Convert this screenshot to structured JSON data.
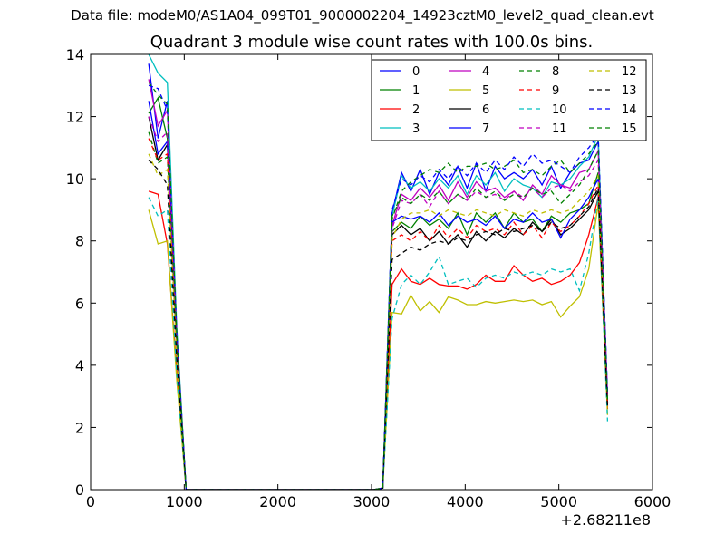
{
  "chart_data": {
    "type": "line",
    "suptitle": "Data file: modeM0/AS1A04_099T01_9000002204_14923cztM0_level2_quad_clean.evt",
    "title": "Quadrant 3 module wise count rates with 100.0s bins.",
    "xlabel": "",
    "ylabel": "",
    "x_offset_label": "+2.68211e8",
    "xlim": [
      0,
      6000
    ],
    "ylim": [
      0,
      14
    ],
    "xticks": [
      "0",
      "1000",
      "2000",
      "3000",
      "4000",
      "5000",
      "6000"
    ],
    "yticks": [
      "0",
      "2",
      "4",
      "6",
      "8",
      "10",
      "12",
      "14"
    ],
    "grid": false,
    "legend_position": "top-right",
    "x": [
      620,
      720,
      820,
      920,
      1020,
      1120,
      1220,
      1320,
      1420,
      1520,
      1620,
      1720,
      1820,
      1920,
      2020,
      2120,
      2220,
      2320,
      2420,
      2520,
      2620,
      2720,
      2820,
      2920,
      3020,
      3120,
      3220,
      3320,
      3420,
      3520,
      3620,
      3720,
      3820,
      3920,
      4020,
      4120,
      4220,
      4320,
      4420,
      4520,
      4620,
      4720,
      4820,
      4920,
      5020,
      5120,
      5220,
      5320,
      5420,
      5520
    ],
    "series": [
      {
        "name": "0",
        "color": "#0000ff",
        "dash": "",
        "values": [
          13.7,
          11.3,
          12.5,
          5,
          0,
          0,
          0,
          0,
          0,
          0,
          0,
          0,
          0,
          0,
          0,
          0,
          0,
          0,
          0,
          0,
          0,
          0,
          0,
          0,
          0,
          0.05,
          8.9,
          10.2,
          9.6,
          10.3,
          9.5,
          10.2,
          9.8,
          10.4,
          9.7,
          10.5,
          9.6,
          10.4,
          10,
          10.2,
          10,
          10.3,
          9.8,
          10.4,
          9.7,
          10.2,
          10.5,
          10.6,
          11.2,
          3
        ]
      },
      {
        "name": "1",
        "color": "#008000",
        "dash": "",
        "values": [
          12.1,
          12.6,
          11.3,
          4.8,
          0,
          0,
          0,
          0,
          0,
          0,
          0,
          0,
          0,
          0,
          0,
          0,
          0,
          0,
          0,
          0,
          0,
          0,
          0,
          0,
          0,
          0.05,
          8.3,
          8.6,
          8.4,
          8.8,
          8.5,
          8.7,
          8.4,
          8.9,
          8.2,
          8.9,
          8.6,
          8.9,
          8.4,
          8.9,
          8.6,
          8.7,
          8.3,
          8.8,
          8.6,
          8.9,
          9,
          9.2,
          10.2,
          2.8
        ]
      },
      {
        "name": "2",
        "color": "#ff0000",
        "dash": "",
        "values": [
          9.6,
          9.5,
          7.9,
          3.8,
          0,
          0,
          0,
          0,
          0,
          0,
          0,
          0,
          0,
          0,
          0,
          0,
          0,
          0,
          0,
          0,
          0,
          0,
          0,
          0,
          0,
          0.05,
          6.6,
          7.1,
          6.7,
          6.6,
          6.8,
          6.6,
          6.55,
          6.55,
          6.45,
          6.6,
          6.9,
          6.7,
          6.7,
          7.2,
          6.9,
          6.7,
          6.8,
          6.6,
          6.7,
          6.9,
          7.3,
          8.2,
          9.4,
          2.6
        ]
      },
      {
        "name": "3",
        "color": "#00bfbf",
        "dash": "",
        "values": [
          14,
          13.4,
          13.1,
          5.2,
          0,
          0,
          0,
          0,
          0,
          0,
          0,
          0,
          0,
          0,
          0,
          0,
          0,
          0,
          0,
          0,
          0,
          0,
          0,
          0,
          0,
          0.05,
          8.8,
          10.1,
          9.7,
          9.9,
          9.6,
          10,
          9.7,
          10.1,
          9.5,
          10.1,
          9.8,
          10.2,
          9.6,
          10,
          9.8,
          9.7,
          9.4,
          9.9,
          9.8,
          10,
          10.4,
          10.7,
          11.4,
          2.8
        ]
      },
      {
        "name": "4",
        "color": "#bf00bf",
        "dash": "",
        "values": [
          13.2,
          11.7,
          12.2,
          5,
          0,
          0,
          0,
          0,
          0,
          0,
          0,
          0,
          0,
          0,
          0,
          0,
          0,
          0,
          0,
          0,
          0,
          0,
          0,
          0,
          0,
          0.05,
          8.5,
          9.5,
          9.3,
          9.7,
          9.4,
          9.8,
          9.3,
          9.9,
          9.4,
          9.9,
          9.6,
          9.7,
          9.4,
          9.6,
          9.3,
          9.8,
          9.5,
          10.1,
          9.8,
          9.7,
          10.2,
          10.3,
          10.9,
          3
        ]
      },
      {
        "name": "5",
        "color": "#bfbf00",
        "dash": "",
        "values": [
          9,
          7.9,
          8,
          3.5,
          0,
          0,
          0,
          0,
          0,
          0,
          0,
          0,
          0,
          0,
          0,
          0,
          0,
          0,
          0,
          0,
          0,
          0,
          0,
          0,
          0,
          0.05,
          5.7,
          5.65,
          6.25,
          5.75,
          6.05,
          5.7,
          6.2,
          6.1,
          5.95,
          5.95,
          6.05,
          6,
          6.05,
          6.1,
          6.05,
          6.1,
          5.95,
          6.05,
          5.55,
          5.9,
          6.2,
          7.1,
          9.2,
          2.4
        ]
      },
      {
        "name": "6",
        "color": "#000000",
        "dash": "",
        "values": [
          12,
          10.6,
          11.1,
          4.6,
          0,
          0,
          0,
          0,
          0,
          0,
          0,
          0,
          0,
          0,
          0,
          0,
          0,
          0,
          0,
          0,
          0,
          0,
          0,
          0,
          0,
          0.05,
          8.2,
          8.5,
          8.2,
          8.4,
          8,
          8.3,
          7.9,
          8.2,
          7.8,
          8.3,
          8,
          8.3,
          8.1,
          8.4,
          8.2,
          8.6,
          8.3,
          8.7,
          8.2,
          8.4,
          8.7,
          9,
          9.6,
          2.7
        ]
      },
      {
        "name": "7",
        "color": "#0000ff",
        "dash": "",
        "values": [
          12.5,
          10.8,
          11.2,
          4.8,
          0,
          0,
          0,
          0,
          0,
          0,
          0,
          0,
          0,
          0,
          0,
          0,
          0,
          0,
          0,
          0,
          0,
          0,
          0,
          0,
          0,
          0.05,
          8.6,
          8.8,
          8.7,
          8.8,
          8.6,
          8.9,
          8.5,
          8.8,
          8.6,
          8.7,
          8.5,
          8.8,
          8.4,
          8.7,
          8.6,
          8.9,
          8.6,
          8.7,
          8.1,
          8.7,
          9,
          9.4,
          10,
          2.9
        ]
      },
      {
        "name": "8",
        "color": "#008000",
        "dash": "5,4",
        "values": [
          11.5,
          10.5,
          10.7,
          4.5,
          0,
          0,
          0,
          0,
          0,
          0,
          0,
          0,
          0,
          0,
          0,
          0,
          0,
          0,
          0,
          0,
          0,
          0,
          0,
          0,
          0,
          0.05,
          8.7,
          9.6,
          9.9,
          10.1,
          10.3,
          10.2,
          10.5,
          10.2,
          10.4,
          10.4,
          10.5,
          10.3,
          10.4,
          10.6,
          10.2,
          10.3,
          10.1,
          10.4,
          10.6,
          10.2,
          10.5,
          10.8,
          11.2,
          2.9
        ]
      },
      {
        "name": "9",
        "color": "#ff0000",
        "dash": "5,4",
        "values": [
          11.3,
          10.6,
          10.8,
          4.5,
          0,
          0,
          0,
          0,
          0,
          0,
          0,
          0,
          0,
          0,
          0,
          0,
          0,
          0,
          0,
          0,
          0,
          0,
          0,
          0,
          0,
          0.05,
          8,
          8.2,
          8,
          8.3,
          8,
          8.5,
          8.1,
          8.4,
          8.1,
          8.5,
          8.3,
          8.4,
          8.2,
          8.6,
          8.2,
          8.5,
          8.1,
          8.6,
          8.3,
          8.5,
          8.8,
          9.2,
          9.8,
          2.8
        ]
      },
      {
        "name": "10",
        "color": "#00bfbf",
        "dash": "5,4",
        "values": [
          9.4,
          8.8,
          9,
          3.7,
          0,
          0,
          0,
          0,
          0,
          0,
          0,
          0,
          0,
          0,
          0,
          0,
          0,
          0,
          0,
          0,
          0,
          0,
          0,
          0,
          0,
          0.05,
          5.5,
          6.6,
          6.9,
          6.6,
          7,
          7.5,
          6.6,
          6.7,
          6.8,
          6.5,
          6.8,
          6.9,
          6.8,
          7,
          6.9,
          7,
          6.9,
          7.1,
          7,
          7.1,
          6.4,
          7.6,
          9.4,
          2.2
        ]
      },
      {
        "name": "11",
        "color": "#bf00bf",
        "dash": "5,4",
        "values": [
          12,
          11.2,
          11.5,
          4.8,
          0,
          0,
          0,
          0,
          0,
          0,
          0,
          0,
          0,
          0,
          0,
          0,
          0,
          0,
          0,
          0,
          0,
          0,
          0,
          0,
          0,
          0.05,
          8.4,
          9.3,
          9.2,
          9.5,
          9.1,
          9.6,
          9.2,
          9.5,
          9.3,
          9.6,
          9.4,
          9.5,
          9.3,
          9.6,
          9.4,
          9.7,
          9.4,
          9.7,
          9.8,
          9.6,
          9.9,
          10.1,
          10.6,
          2.9
        ]
      },
      {
        "name": "12",
        "color": "#bfbf00",
        "dash": "5,4",
        "values": [
          10.8,
          10.1,
          10.3,
          4.3,
          0,
          0,
          0,
          0,
          0,
          0,
          0,
          0,
          0,
          0,
          0,
          0,
          0,
          0,
          0,
          0,
          0,
          0,
          0,
          0,
          0,
          0.05,
          8.1,
          8.7,
          8.9,
          8.9,
          9,
          8.8,
          9,
          8.9,
          8.8,
          9,
          8.9,
          8.8,
          9,
          8.9,
          8.8,
          9,
          8.9,
          9,
          8.9,
          9,
          9.3,
          9.6,
          10.1,
          2.8
        ]
      },
      {
        "name": "13",
        "color": "#000000",
        "dash": "5,4",
        "values": [
          10.6,
          10.3,
          9.8,
          4.2,
          0,
          0,
          0,
          0,
          0,
          0,
          0,
          0,
          0,
          0,
          0,
          0,
          0,
          0,
          0,
          0,
          0,
          0,
          0,
          0,
          0,
          0.05,
          7.4,
          7.6,
          7.8,
          7.7,
          7.9,
          8,
          7.9,
          8.1,
          8,
          8.2,
          8.3,
          8.2,
          8.4,
          8.3,
          8.4,
          8.5,
          8.3,
          8.6,
          8.4,
          8.5,
          8.8,
          9.1,
          9.7,
          2.6
        ]
      },
      {
        "name": "14",
        "color": "#0000ff",
        "dash": "5,4",
        "values": [
          13,
          12.9,
          12.2,
          5,
          0,
          0,
          0,
          0,
          0,
          0,
          0,
          0,
          0,
          0,
          0,
          0,
          0,
          0,
          0,
          0,
          0,
          0,
          0,
          0,
          0,
          0.05,
          9,
          10,
          9.8,
          10.1,
          9.9,
          10.3,
          10,
          10.4,
          10.1,
          10.5,
          10.2,
          10.6,
          10.3,
          10.7,
          10.4,
          10.8,
          10.5,
          10.6,
          10.4,
          10.2,
          10.7,
          11,
          11.4,
          3.1
        ]
      },
      {
        "name": "15",
        "color": "#008000",
        "dash": "5,4",
        "values": [
          13.1,
          12.7,
          12.4,
          5,
          0,
          0,
          0,
          0,
          0,
          0,
          0,
          0,
          0,
          0,
          0,
          0,
          0,
          0,
          0,
          0,
          0,
          0,
          0,
          0,
          0,
          0.05,
          8.8,
          9.4,
          9.2,
          9.5,
          9.3,
          9.6,
          9.2,
          9.5,
          9.3,
          9.7,
          9.4,
          9.6,
          9.3,
          9.5,
          9.4,
          9.7,
          9.5,
          9.6,
          9.2,
          9.5,
          9.8,
          10.3,
          10.9,
          2.9
        ]
      }
    ]
  }
}
